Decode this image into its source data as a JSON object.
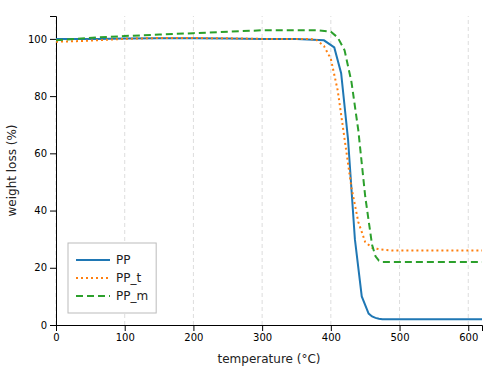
{
  "chart_data": {
    "type": "line",
    "xlabel": "temperature (°C)",
    "ylabel": "weight loss (%)",
    "xlim": [
      0,
      620
    ],
    "ylim": [
      0,
      108
    ],
    "xticks": [
      0,
      100,
      200,
      300,
      400,
      500,
      600
    ],
    "yticks": [
      0,
      20,
      40,
      60,
      80,
      100
    ],
    "grid": "x",
    "legend": "lower left",
    "series": [
      {
        "name": "PP",
        "line_style": "solid",
        "x": [
          0,
          30,
          60,
          100,
          150,
          200,
          250,
          300,
          350,
          390,
          405,
          415,
          425,
          435,
          445,
          455,
          460,
          465,
          470,
          475,
          480,
          490,
          500,
          550,
          620
        ],
        "values": [
          100.0,
          100.0,
          100.0,
          100.1,
          100.2,
          100.2,
          100.1,
          100.0,
          100.0,
          99.5,
          97.0,
          88.0,
          65.0,
          30.0,
          10.0,
          4.0,
          3.0,
          2.5,
          2.2,
          2.0,
          2.0,
          2.0,
          2.0,
          2.0,
          2.0
        ]
      },
      {
        "name": "PP_t",
        "line_style": "dotted",
        "x": [
          0,
          30,
          60,
          100,
          150,
          200,
          250,
          300,
          350,
          370,
          380,
          390,
          400,
          410,
          420,
          430,
          440,
          450,
          460,
          470,
          480,
          490,
          500,
          550,
          620
        ],
        "values": [
          99.0,
          99.2,
          99.5,
          100.0,
          100.3,
          100.3,
          100.2,
          100.0,
          100.0,
          100.0,
          99.5,
          97.5,
          93.0,
          82.0,
          65.0,
          48.0,
          36.0,
          29.0,
          27.0,
          26.5,
          26.2,
          26.0,
          26.0,
          26.0,
          26.0
        ]
      },
      {
        "name": "PP_m",
        "line_style": "dashed",
        "x": [
          0,
          30,
          60,
          100,
          150,
          200,
          250,
          300,
          350,
          380,
          400,
          410,
          420,
          430,
          440,
          450,
          460,
          465,
          470,
          475,
          480,
          490,
          500,
          550,
          620
        ],
        "values": [
          99.5,
          100.0,
          100.5,
          101.0,
          101.5,
          102.0,
          102.5,
          103.0,
          103.0,
          103.0,
          102.5,
          100.5,
          96.0,
          85.0,
          68.0,
          45.0,
          28.0,
          24.0,
          22.5,
          22.0,
          22.0,
          22.0,
          22.0,
          22.0,
          22.0
        ]
      }
    ]
  }
}
